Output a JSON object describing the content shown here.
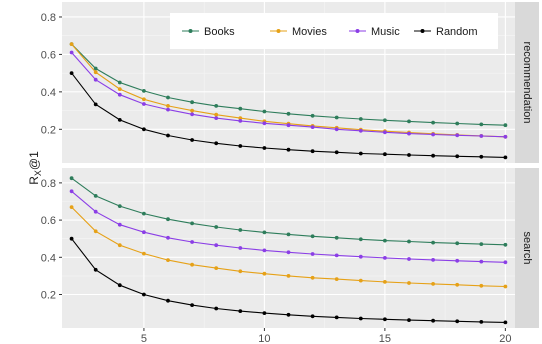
{
  "chart_data": {
    "type": "line",
    "ylabel": "R",
    "ylabel_subscript": "X",
    "ylabel_suffix": "@1",
    "xlabel": "",
    "x": [
      2,
      3,
      4,
      5,
      6,
      7,
      8,
      9,
      10,
      11,
      12,
      13,
      14,
      15,
      16,
      17,
      18,
      19,
      20
    ],
    "x_ticks": [
      "5",
      "10",
      "15",
      "20"
    ],
    "x_tick_values": [
      5,
      10,
      15,
      20
    ],
    "xlim": [
      1.6,
      20.4
    ],
    "legend_placement": "inside top-right of first panel",
    "grid": true,
    "series_styles": [
      {
        "name": "Books",
        "color": "#2e7d5b"
      },
      {
        "name": "Movies",
        "color": "#e6a117"
      },
      {
        "name": "Music",
        "color": "#8b3ee6"
      },
      {
        "name": "Random",
        "color": "#000000"
      }
    ],
    "panels": [
      {
        "strip": "recommendation",
        "ylim": [
          0.02,
          0.88
        ],
        "y_ticks": [
          "0.2",
          "0.4",
          "0.6",
          "0.8"
        ],
        "y_tick_values": [
          0.2,
          0.4,
          0.6,
          0.8
        ],
        "series": [
          {
            "name": "Books",
            "values": [
              0.655,
              0.525,
              0.45,
              0.405,
              0.37,
              0.345,
              0.325,
              0.31,
              0.295,
              0.283,
              0.272,
              0.263,
              0.255,
              0.248,
              0.242,
              0.236,
              0.231,
              0.226,
              0.222
            ]
          },
          {
            "name": "Movies",
            "values": [
              0.655,
              0.505,
              0.415,
              0.36,
              0.325,
              0.3,
              0.278,
              0.26,
              0.243,
              0.23,
              0.218,
              0.208,
              0.198,
              0.19,
              0.183,
              0.176,
              0.17,
              0.165,
              0.16
            ]
          },
          {
            "name": "Music",
            "values": [
              0.61,
              0.465,
              0.385,
              0.335,
              0.305,
              0.28,
              0.26,
              0.245,
              0.232,
              0.222,
              0.212,
              0.2,
              0.192,
              0.184,
              0.177,
              0.172,
              0.168,
              0.164,
              0.16
            ]
          },
          {
            "name": "Random",
            "values": [
              0.5,
              0.333,
              0.25,
              0.2,
              0.167,
              0.143,
              0.125,
              0.111,
              0.1,
              0.091,
              0.083,
              0.077,
              0.071,
              0.067,
              0.0625,
              0.059,
              0.056,
              0.053,
              0.05
            ]
          }
        ]
      },
      {
        "strip": "search",
        "ylim": [
          0.02,
          0.88
        ],
        "y_ticks": [
          "0.2",
          "0.4",
          "0.6",
          "0.8"
        ],
        "y_tick_values": [
          0.2,
          0.4,
          0.6,
          0.8
        ],
        "series": [
          {
            "name": "Books",
            "values": [
              0.825,
              0.73,
              0.675,
              0.635,
              0.605,
              0.582,
              0.563,
              0.547,
              0.534,
              0.523,
              0.513,
              0.505,
              0.497,
              0.49,
              0.485,
              0.479,
              0.475,
              0.471,
              0.467
            ]
          },
          {
            "name": "Movies",
            "values": [
              0.67,
              0.54,
              0.465,
              0.42,
              0.385,
              0.36,
              0.342,
              0.325,
              0.312,
              0.3,
              0.29,
              0.283,
              0.275,
              0.268,
              0.262,
              0.257,
              0.252,
              0.247,
              0.243
            ]
          },
          {
            "name": "Music",
            "values": [
              0.755,
              0.645,
              0.575,
              0.535,
              0.505,
              0.482,
              0.465,
              0.45,
              0.437,
              0.427,
              0.418,
              0.41,
              0.403,
              0.397,
              0.391,
              0.386,
              0.381,
              0.377,
              0.373
            ]
          },
          {
            "name": "Random",
            "values": [
              0.5,
              0.333,
              0.25,
              0.2,
              0.167,
              0.143,
              0.125,
              0.111,
              0.1,
              0.091,
              0.083,
              0.077,
              0.071,
              0.067,
              0.0625,
              0.059,
              0.056,
              0.053,
              0.05
            ]
          }
        ]
      }
    ]
  }
}
